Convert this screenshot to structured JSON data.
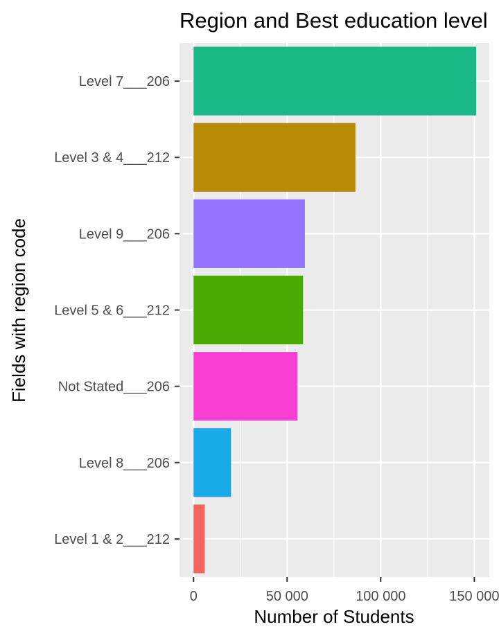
{
  "chart_data": {
    "type": "bar",
    "orientation": "horizontal",
    "title": "Region and Best education level",
    "xlabel": "Number of Students",
    "ylabel": "Fields with region code",
    "categories": [
      "Level 7___206",
      "Level 3 & 4___212",
      "Level 9___206",
      "Level 5 & 6___212",
      "Not Stated___206",
      "Level 8___206",
      "Level 1 & 2___212"
    ],
    "values": [
      151000,
      86500,
      59500,
      58500,
      55500,
      20000,
      6000
    ],
    "colors": [
      "#1AB887",
      "#B78B05",
      "#9573FF",
      "#4BAA02",
      "#F83FD3",
      "#17A9E8",
      "#F5645E"
    ],
    "xlim": [
      -7500,
      158000
    ],
    "xticks": [
      0,
      50000,
      100000,
      150000
    ],
    "xtick_labels": [
      "0",
      "50 000",
      "100 000",
      "150 000"
    ],
    "grid": true,
    "legend": "none",
    "background": "#EBEBEB"
  }
}
